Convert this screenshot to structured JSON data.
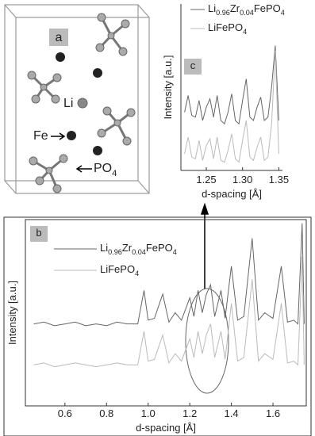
{
  "diagram": {
    "label": "a",
    "li": "Li",
    "fe": "Fe",
    "po4": "PO4"
  },
  "chart_data": [
    {
      "type": "line",
      "panel": "c",
      "xlabel": "d-spacing [Å]",
      "ylabel": "Intensity [a.u.]",
      "xlim": [
        1.215,
        1.355
      ],
      "xticks": [
        1.25,
        {
          "value": 1.3,
          "label": "1.30"
        },
        1.35
      ],
      "ylim": [
        0,
        1
      ],
      "x": [
        1.22,
        1.225,
        1.23,
        1.235,
        1.24,
        1.245,
        1.25,
        1.255,
        1.26,
        1.265,
        1.27,
        1.275,
        1.28,
        1.285,
        1.29,
        1.295,
        1.3,
        1.305,
        1.31,
        1.315,
        1.32,
        1.325,
        1.33,
        1.335,
        1.34,
        1.345,
        1.35
      ],
      "series": [
        {
          "name": "Li0.96Zr0.04FePO4",
          "color": "#666666",
          "values": [
            0.35,
            0.45,
            0.33,
            0.32,
            0.42,
            0.3,
            0.38,
            0.43,
            0.32,
            0.45,
            0.3,
            0.28,
            0.35,
            0.46,
            0.3,
            0.28,
            0.42,
            0.55,
            0.32,
            0.3,
            0.38,
            0.44,
            0.3,
            0.32,
            0.5,
            0.75,
            0.3
          ]
        },
        {
          "name": "LiFePO4",
          "color": "#bbbbbb",
          "values": [
            0.1,
            0.2,
            0.08,
            0.07,
            0.18,
            0.06,
            0.15,
            0.19,
            0.07,
            0.2,
            0.06,
            0.05,
            0.12,
            0.22,
            0.07,
            0.05,
            0.18,
            0.3,
            0.08,
            0.06,
            0.14,
            0.2,
            0.06,
            0.08,
            0.28,
            0.72,
            0.1
          ]
        }
      ]
    },
    {
      "type": "line",
      "panel": "b",
      "xlabel": "d-spacing [Å]",
      "ylabel": "Intensity [a.u.]",
      "xlim": [
        0.41,
        1.76
      ],
      "xticks": [
        0.6,
        0.8,
        {
          "value": 1.0,
          "label": "1.0"
        },
        1.2,
        1.4,
        1.6
      ],
      "ylim": [
        0,
        1
      ],
      "x": [
        0.45,
        0.5,
        0.55,
        0.6,
        0.65,
        0.7,
        0.75,
        0.8,
        0.85,
        0.9,
        0.95,
        0.98,
        1.0,
        1.03,
        1.07,
        1.1,
        1.13,
        1.16,
        1.2,
        1.22,
        1.24,
        1.26,
        1.28,
        1.3,
        1.32,
        1.35,
        1.37,
        1.4,
        1.43,
        1.46,
        1.5,
        1.53,
        1.56,
        1.6,
        1.64,
        1.67,
        1.7,
        1.72,
        1.74,
        1.75
      ],
      "series": [
        {
          "name": "Li0.96Zr0.04FePO4",
          "color": "#666666",
          "values": [
            0.44,
            0.45,
            0.43,
            0.44,
            0.45,
            0.43,
            0.44,
            0.43,
            0.45,
            0.44,
            0.44,
            0.62,
            0.46,
            0.47,
            0.6,
            0.45,
            0.5,
            0.46,
            0.58,
            0.48,
            0.62,
            0.5,
            0.6,
            0.65,
            0.48,
            0.62,
            0.47,
            0.75,
            0.46,
            0.48,
            0.9,
            0.46,
            0.5,
            0.47,
            0.75,
            0.45,
            0.46,
            0.44,
            0.98,
            0.44
          ]
        },
        {
          "name": "LiFePO4",
          "color": "#bbbbbb",
          "values": [
            0.22,
            0.23,
            0.21,
            0.22,
            0.23,
            0.22,
            0.21,
            0.22,
            0.23,
            0.22,
            0.22,
            0.4,
            0.24,
            0.25,
            0.38,
            0.23,
            0.28,
            0.24,
            0.36,
            0.26,
            0.4,
            0.28,
            0.38,
            0.44,
            0.26,
            0.4,
            0.25,
            0.55,
            0.24,
            0.26,
            0.68,
            0.24,
            0.28,
            0.25,
            0.55,
            0.23,
            0.24,
            0.22,
            0.8,
            0.22
          ]
        }
      ]
    }
  ]
}
